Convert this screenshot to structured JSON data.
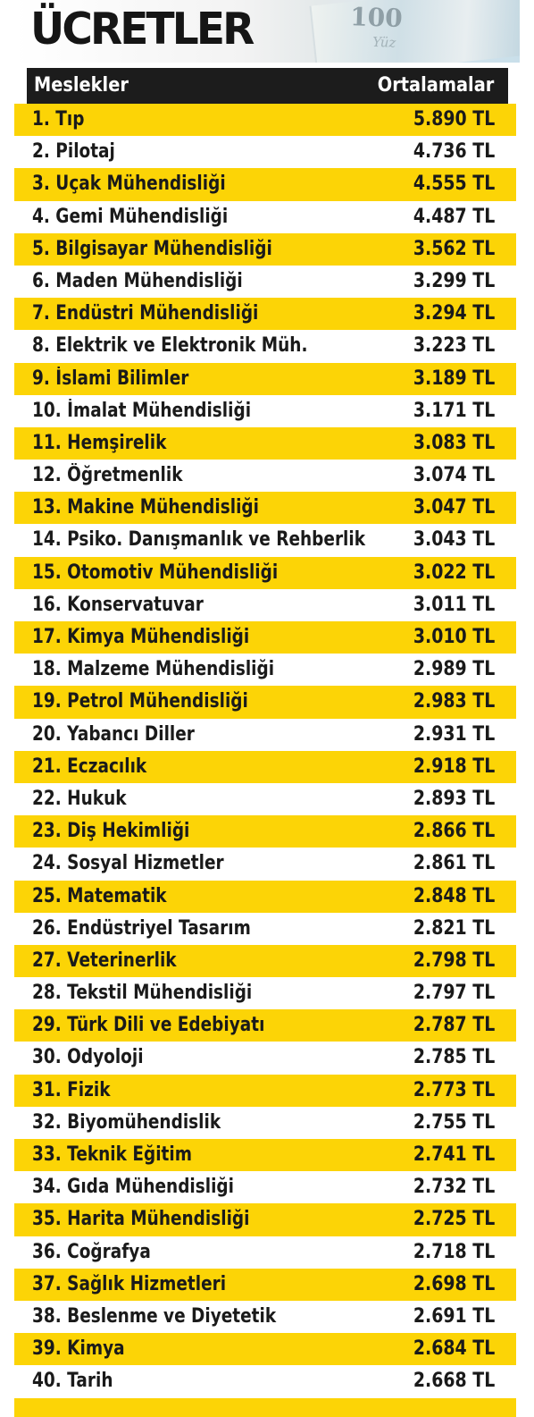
{
  "chart_data": {
    "type": "table",
    "title": "ÜCRETLER",
    "columns": [
      "Meslekler",
      "Ortalamalar"
    ],
    "rows": [
      {
        "name": "1. Tıp",
        "value": "5.890 TL",
        "amount": 5890
      },
      {
        "name": "2. Pilotaj",
        "value": "4.736 TL",
        "amount": 4736
      },
      {
        "name": "3. Uçak Mühendisliği",
        "value": "4.555 TL",
        "amount": 4555
      },
      {
        "name": "4. Gemi Mühendisliği",
        "value": "4.487 TL",
        "amount": 4487
      },
      {
        "name": "5. Bilgisayar Mühendisliği",
        "value": "3.562 TL",
        "amount": 3562
      },
      {
        "name": "6. Maden Mühendisliği",
        "value": "3.299 TL",
        "amount": 3299
      },
      {
        "name": "7. Endüstri Mühendisliği",
        "value": "3.294 TL",
        "amount": 3294
      },
      {
        "name": "8. Elektrik ve Elektronik Müh.",
        "value": "3.223 TL",
        "amount": 3223
      },
      {
        "name": "9. İslami Bilimler",
        "value": "3.189 TL",
        "amount": 3189
      },
      {
        "name": "10. İmalat Mühendisliği",
        "value": "3.171 TL",
        "amount": 3171
      },
      {
        "name": "11. Hemşirelik",
        "value": "3.083 TL",
        "amount": 3083
      },
      {
        "name": "12. Öğretmenlik",
        "value": "3.074 TL",
        "amount": 3074
      },
      {
        "name": "13. Makine Mühendisliği",
        "value": "3.047 TL",
        "amount": 3047
      },
      {
        "name": "14. Psiko. Danışmanlık ve Rehberlik",
        "value": "3.043 TL",
        "amount": 3043
      },
      {
        "name": "15. Otomotiv Mühendisliği",
        "value": "3.022 TL",
        "amount": 3022
      },
      {
        "name": "16. Konservatuvar",
        "value": "3.011 TL",
        "amount": 3011
      },
      {
        "name": "17. Kimya Mühendisliği",
        "value": "3.010 TL",
        "amount": 3010
      },
      {
        "name": "18. Malzeme Mühendisliği",
        "value": "2.989 TL",
        "amount": 2989
      },
      {
        "name": "19. Petrol Mühendisliği",
        "value": "2.983 TL",
        "amount": 2983
      },
      {
        "name": "20. Yabancı Diller",
        "value": "2.931 TL",
        "amount": 2931
      },
      {
        "name": "21. Eczacılık",
        "value": "2.918 TL",
        "amount": 2918
      },
      {
        "name": "22. Hukuk",
        "value": "2.893 TL",
        "amount": 2893
      },
      {
        "name": "23. Diş Hekimliği",
        "value": "2.866 TL",
        "amount": 2866
      },
      {
        "name": "24. Sosyal Hizmetler",
        "value": "2.861 TL",
        "amount": 2861
      },
      {
        "name": "25. Matematik",
        "value": "2.848 TL",
        "amount": 2848
      },
      {
        "name": "26. Endüstriyel Tasarım",
        "value": "2.821 TL",
        "amount": 2821
      },
      {
        "name": "27. Veterinerlik",
        "value": "2.798 TL",
        "amount": 2798
      },
      {
        "name": "28. Tekstil Mühendisliği",
        "value": "2.797 TL",
        "amount": 2797
      },
      {
        "name": "29. Türk Dili ve Edebiyatı",
        "value": "2.787 TL",
        "amount": 2787
      },
      {
        "name": "30. Odyoloji",
        "value": "2.785 TL",
        "amount": 2785
      },
      {
        "name": "31. Fizik",
        "value": "2.773 TL",
        "amount": 2773
      },
      {
        "name": "32. Biyomühendislik",
        "value": "2.755 TL",
        "amount": 2755
      },
      {
        "name": "33. Teknik Eğitim",
        "value": "2.741 TL",
        "amount": 2741
      },
      {
        "name": "34. Gıda Mühendisliği",
        "value": "2.732 TL",
        "amount": 2732
      },
      {
        "name": "35. Harita Mühendisliği",
        "value": "2.725 TL",
        "amount": 2725
      },
      {
        "name": "36. Coğrafya",
        "value": "2.718 TL",
        "amount": 2718
      },
      {
        "name": "37. Sağlık Hizmetleri",
        "value": "2.698 TL",
        "amount": 2698
      },
      {
        "name": "38. Beslenme ve Diyetetik",
        "value": "2.691 TL",
        "amount": 2691
      },
      {
        "name": "39. Kimya",
        "value": "2.684 TL",
        "amount": 2684
      },
      {
        "name": "40. Tarih",
        "value": "2.668 TL",
        "amount": 2668
      }
    ]
  },
  "banner": {
    "banknote_number": "100",
    "banknote_text": "Yüz"
  },
  "colors": {
    "stripe": "#fcd406",
    "header_bg": "#1c1c1c",
    "text": "#1a1a1a"
  }
}
